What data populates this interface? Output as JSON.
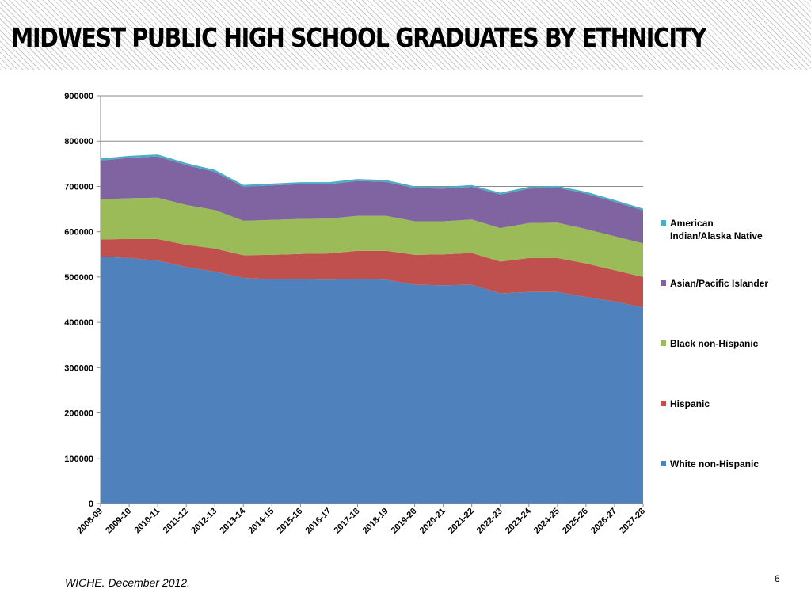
{
  "slide": {
    "title": "MIDWEST PUBLIC HIGH SCHOOL GRADUATES BY ETHNICITY",
    "source": "WICHE. December 2012.",
    "page_number": "6"
  },
  "chart_data": {
    "type": "area",
    "stacked": true,
    "title": "",
    "xlabel": "",
    "ylabel": "",
    "ylim": [
      0,
      900000
    ],
    "yticks": [
      0,
      100000,
      200000,
      300000,
      400000,
      500000,
      600000,
      700000,
      800000,
      900000
    ],
    "grid": true,
    "legend_position": "right",
    "categories": [
      "2008-09",
      "2009-10",
      "2010-11",
      "2011-12",
      "2012-13",
      "2013-14",
      "2014-15",
      "2015-16",
      "2016-17",
      "2017-18",
      "2018-19",
      "2019-20",
      "2020-21",
      "2021-22",
      "2022-23",
      "2023-24",
      "2024-25",
      "2025-26",
      "2026-27",
      "2027-28"
    ],
    "series": [
      {
        "name": "White non-Hispanic",
        "color": "#4F81BD",
        "values": [
          545000,
          542000,
          536000,
          522000,
          512000,
          498000,
          495000,
          495000,
          494000,
          496000,
          494000,
          483000,
          482000,
          483000,
          464000,
          467000,
          467000,
          456000,
          446000,
          433000
        ]
      },
      {
        "name": "Hispanic",
        "color": "#C0504D",
        "values": [
          38000,
          42000,
          48000,
          49000,
          51000,
          50000,
          54000,
          56000,
          58000,
          62000,
          64000,
          66000,
          68000,
          70000,
          70000,
          75000,
          75000,
          74000,
          69000,
          67000
        ]
      },
      {
        "name": "Black non-Hispanic",
        "color": "#9BBB59",
        "values": [
          88000,
          90000,
          91000,
          88000,
          85000,
          76000,
          77000,
          77000,
          77000,
          77000,
          77000,
          74000,
          73000,
          74000,
          74000,
          77000,
          78000,
          76000,
          75000,
          74000
        ]
      },
      {
        "name": "Asian/Pacific Islander",
        "color": "#8064A2",
        "values": [
          86000,
          89000,
          91000,
          88000,
          84000,
          75000,
          76000,
          77000,
          76000,
          77000,
          75000,
          73000,
          72000,
          72000,
          74000,
          76000,
          77000,
          78000,
          76000,
          73000
        ]
      },
      {
        "name": "American Indian/Alaska Native",
        "color": "#4BACC6",
        "values": [
          4500,
          4500,
          4500,
          4500,
          4500,
          4200,
          4200,
          4200,
          4200,
          4200,
          4200,
          4000,
          4000,
          4000,
          4000,
          4000,
          4000,
          4000,
          4000,
          4000
        ]
      }
    ]
  }
}
